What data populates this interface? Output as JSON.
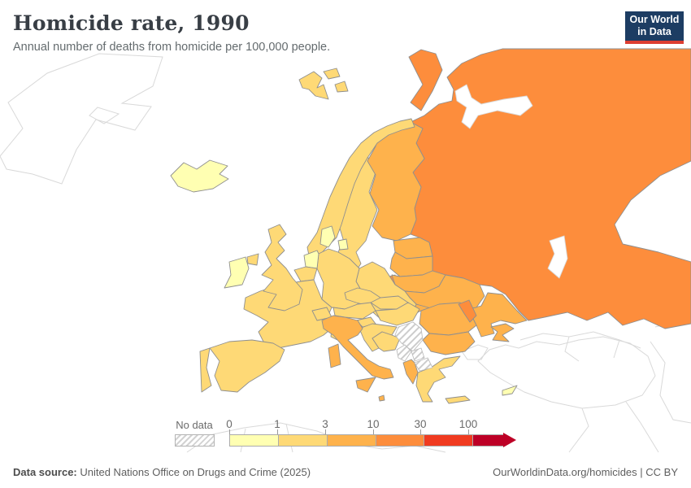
{
  "header": {
    "title": "Homicide rate, 1990",
    "subtitle": "Annual number of deaths from homicide per 100,000 people.",
    "logo": {
      "line1": "Our World",
      "line2": "in Data",
      "bg": "#1d3d63",
      "accent": "#dc3e32"
    }
  },
  "legend": {
    "no_data_label": "No data",
    "tick_labels": [
      "0",
      "1",
      "3",
      "10",
      "30",
      "100"
    ],
    "band_ranges": [
      "0-1",
      "1-3",
      "3-10",
      "10-30",
      "30-100",
      "100+"
    ],
    "band_colors": [
      "#FFFFB2",
      "#FED976",
      "#FEB24C",
      "#FD8D3C",
      "#F03B20",
      "#BD0026"
    ]
  },
  "map": {
    "country_stroke": "#8f8f8f",
    "background_stroke": "#d9d9d9",
    "no_data_stroke": "#bdbdbd"
  },
  "footer": {
    "source_label": "Data source:",
    "source_text": " United Nations Office on Drugs and Crime (2025)",
    "right_text": "OurWorldinData.org/homicides | CC BY"
  },
  "chart_data": {
    "type": "heatmap",
    "subtype": "choropleth-map",
    "region": "Europe",
    "title": "Homicide rate, 1990",
    "subtitle": "Annual number of deaths from homicide per 100,000 people.",
    "unit": "deaths per 100,000 people",
    "legend_bins": [
      {
        "range": "0-1",
        "color": "#FFFFB2"
      },
      {
        "range": "1-3",
        "color": "#FED976"
      },
      {
        "range": "3-10",
        "color": "#FEB24C"
      },
      {
        "range": "10-30",
        "color": "#FD8D3C"
      },
      {
        "range": "30-100",
        "color": "#F03B20"
      },
      {
        "range": "100+",
        "color": "#BD0026"
      },
      {
        "range": "No data",
        "color": "hatched"
      }
    ],
    "countries": {
      "Iceland": "0-1",
      "Ireland": "0-1",
      "Netherlands": "0-1",
      "Denmark": "0-1",
      "Cyprus": "0-1",
      "United Kingdom": "1-3",
      "Norway": "1-3",
      "Sweden": "1-3",
      "France": "1-3",
      "Spain": "1-3",
      "Portugal": "1-3",
      "Belgium": "1-3",
      "Germany": "1-3",
      "Switzerland": "1-3",
      "Austria": "1-3",
      "Czechia": "1-3",
      "Poland": "1-3",
      "Slovakia": "1-3",
      "Hungary": "1-3",
      "Slovenia": "1-3",
      "Croatia": "1-3",
      "Bosnia and Herzegovina": "1-3",
      "Greece": "1-3",
      "Finland": "3-10",
      "Italy": "3-10",
      "Estonia": "3-10",
      "Latvia": "3-10",
      "Lithuania": "3-10",
      "Belarus": "3-10",
      "Ukraine": "3-10",
      "Romania": "3-10",
      "Bulgaria": "3-10",
      "Albania": "3-10",
      "Malta": "3-10",
      "Russia": "10-30",
      "Moldova": "10-30",
      "Serbia": "No data",
      "Montenegro": "No data",
      "Kosovo": "No data",
      "North Macedonia": "No data"
    }
  }
}
